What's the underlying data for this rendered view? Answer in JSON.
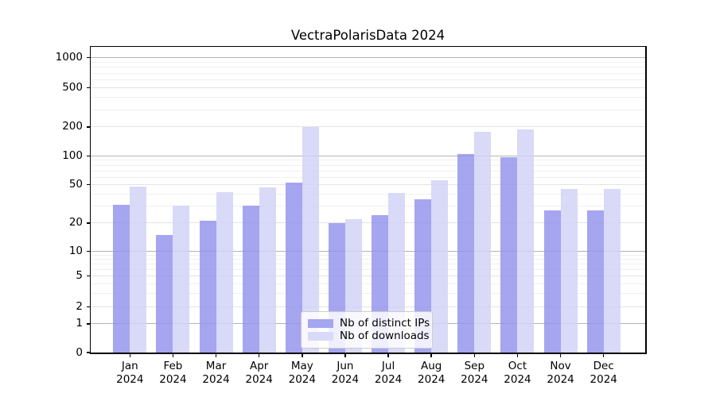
{
  "title": "VectraPolarisData 2024",
  "chart_data": {
    "type": "bar",
    "title": "VectraPolarisData 2024",
    "categories": [
      "Jan 2024",
      "Feb 2024",
      "Mar 2024",
      "Apr 2024",
      "May 2024",
      "Jun 2024",
      "Jul 2024",
      "Aug 2024",
      "Sep 2024",
      "Oct 2024",
      "Nov 2024",
      "Dec 2024"
    ],
    "series": [
      {
        "name": "Nb of distinct IPs",
        "color": "#a5a5f0",
        "values": [
          31,
          15,
          21,
          30,
          53,
          20,
          24,
          35,
          104,
          97,
          27,
          27
        ]
      },
      {
        "name": "Nb of downloads",
        "color": "#d9d9f8",
        "values": [
          48,
          30,
          42,
          47,
          199,
          22,
          41,
          56,
          178,
          187,
          45,
          45
        ]
      }
    ],
    "xlabel": "",
    "ylabel": "",
    "yscale": "symlog",
    "ylim": [
      0,
      1300
    ],
    "yticks": [
      0,
      1,
      2,
      5,
      10,
      20,
      50,
      100,
      200,
      500,
      1000
    ],
    "grid": true,
    "legend_position": "lower center"
  },
  "scale": {
    "anchors": [
      [
        0,
        0
      ],
      [
        1,
        0.0936
      ],
      [
        2,
        0.1495
      ],
      [
        5,
        0.2504
      ],
      [
        10,
        0.3309
      ],
      [
        20,
        0.4237
      ],
      [
        50,
        0.5493
      ],
      [
        100,
        0.6429
      ],
      [
        200,
        0.7383
      ],
      [
        500,
        0.8656
      ],
      [
        1000,
        0.9644
      ]
    ],
    "minor_ticks": [
      3,
      4,
      6,
      7,
      8,
      9,
      30,
      40,
      60,
      70,
      80,
      90,
      300,
      400,
      600,
      700,
      800,
      900
    ],
    "major_decades": [
      1,
      10,
      100,
      1000
    ]
  },
  "colors": {
    "grid_major": "#b3b3b3",
    "grid_labeled": "#e3e3e3",
    "grid_minor": "#f0f0f0",
    "spine": "#000000",
    "text": "#000000",
    "legend_border": "#cccccc"
  }
}
